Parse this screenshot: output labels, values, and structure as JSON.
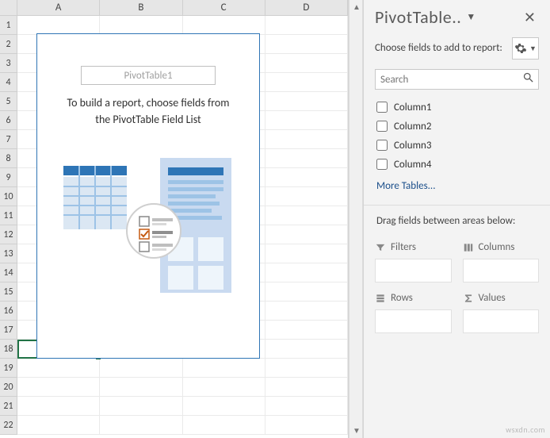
{
  "grid": {
    "columns": [
      "A",
      "B",
      "C",
      "D"
    ],
    "row_count": 22,
    "active_cell": "A18"
  },
  "pivot_placeholder": {
    "title": "PivotTable1",
    "message_line1": "To build a report, choose fields from",
    "message_line2": "the PivotTable Field List"
  },
  "taskpane": {
    "title": "PivotTable..",
    "subtitle": "Choose fields to add to report:",
    "search_placeholder": "Search",
    "fields": [
      {
        "label": "Column1",
        "checked": false
      },
      {
        "label": "Column2",
        "checked": false
      },
      {
        "label": "Column3",
        "checked": false
      },
      {
        "label": "Column4",
        "checked": false
      }
    ],
    "more_tables": "More Tables...",
    "drag_msg": "Drag fields between areas below:",
    "areas": {
      "filters": "Filters",
      "columns": "Columns",
      "rows": "Rows",
      "values": "Values"
    }
  },
  "watermark": "wsxdn.com",
  "colors": {
    "excel_green": "#217346",
    "pane_bg": "#f3f3f3",
    "border": "#d4d4d4",
    "placeholder_border": "#2f75b5"
  }
}
